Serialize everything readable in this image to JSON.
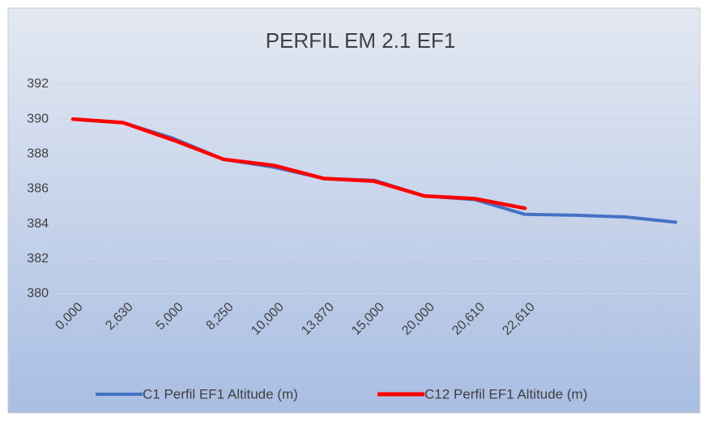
{
  "chart_data": {
    "type": "line",
    "title": "PERFIL EM 2.1 EF1",
    "categories": [
      "0,000",
      "2,630",
      "5,000",
      "8,250",
      "10,000",
      "13,870",
      "15,000",
      "20,000",
      "20,610",
      "22,610",
      null,
      null,
      null
    ],
    "series": [
      {
        "name": "C1 Perfil EF1 Altitude (m)",
        "color": "#4472c4",
        "values": [
          390,
          389.8,
          388.9,
          387.7,
          387.25,
          386.6,
          386.5,
          385.6,
          385.4,
          384.55,
          384.5,
          384.4,
          384.1
        ]
      },
      {
        "name": "C12 Perfil EF1 Altitude (m)",
        "color": "#ff0000",
        "values": [
          390,
          389.8,
          388.8,
          387.7,
          387.35,
          386.6,
          386.45,
          385.6,
          385.45,
          384.9,
          null,
          null,
          null
        ]
      }
    ],
    "ylim": [
      380,
      392
    ],
    "yticks": [
      380,
      382,
      384,
      386,
      388,
      390,
      392
    ],
    "grid": true,
    "legend": "bottom"
  }
}
